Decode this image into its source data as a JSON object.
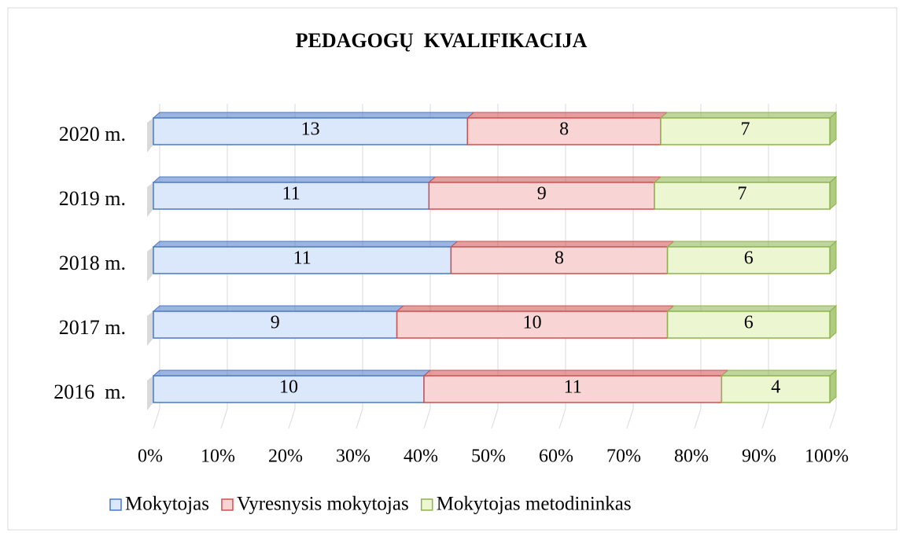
{
  "chart_data": {
    "type": "bar",
    "orientation": "horizontal",
    "stacking": "percent",
    "title": "PEDAGOGŲ  KVALIFIKACIJA",
    "categories": [
      "2020 m.",
      "2019 m.",
      "2018 m.",
      "2017 m.",
      "2016  m."
    ],
    "series": [
      {
        "name": "Mokytojas",
        "color": "#dbe7fb",
        "edge": "#4a78c6",
        "values": [
          13,
          11,
          11,
          9,
          10
        ]
      },
      {
        "name": "Vyresnysis mokytojas",
        "color": "#f9d4d4",
        "edge": "#d04f4f",
        "values": [
          8,
          9,
          8,
          10,
          11
        ]
      },
      {
        "name": "Mokytojas metodininkas",
        "color": "#ecf7d2",
        "edge": "#8db34c",
        "values": [
          7,
          7,
          6,
          6,
          4
        ]
      }
    ],
    "xlim": [
      0,
      100
    ],
    "xticks": [
      {
        "value": 0,
        "label": "0%"
      },
      {
        "value": 10,
        "label": "10%"
      },
      {
        "value": 20,
        "label": "20%"
      },
      {
        "value": 30,
        "label": "30%"
      },
      {
        "value": 40,
        "label": "40%"
      },
      {
        "value": 50,
        "label": "50%"
      },
      {
        "value": 60,
        "label": "60%"
      },
      {
        "value": 70,
        "label": "70%"
      },
      {
        "value": 80,
        "label": "80%"
      },
      {
        "value": 90,
        "label": "90%"
      },
      {
        "value": 100,
        "label": "100%"
      }
    ],
    "grid": true,
    "legend": "bottom"
  }
}
